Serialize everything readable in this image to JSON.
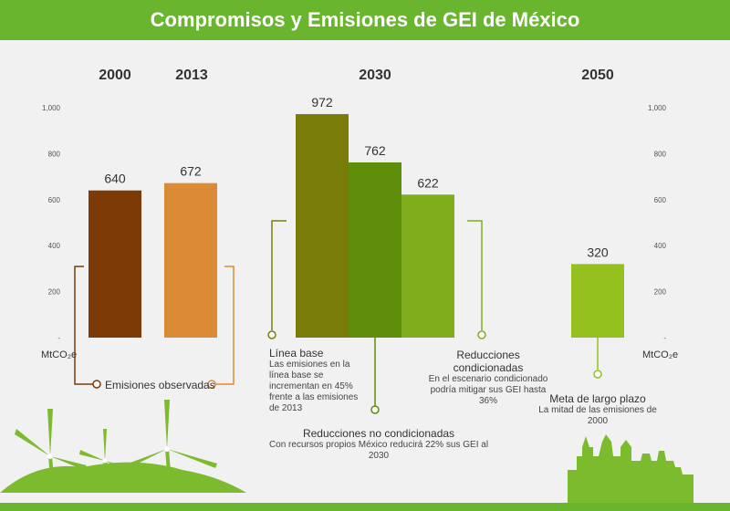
{
  "title": "Compromisos y Emisiones de GEI de México",
  "unit_label": "MtCO₂e",
  "colors": {
    "header": "#69b52e",
    "y2000": "#7b3a06",
    "y2013": "#db8a35",
    "base": "#7a7c0a",
    "noncond": "#5e8e0a",
    "cond": "#7fad1c",
    "goal": "#94c11d"
  },
  "chart_data": {
    "type": "bar",
    "ylim": [
      0,
      1000
    ],
    "yticks": [
      "-",
      "200",
      "400",
      "600",
      "800",
      "1,000"
    ],
    "groups": [
      "2000",
      "2013",
      "2030",
      "2050"
    ],
    "bars": [
      {
        "group": "2000",
        "value": 640,
        "label": "640",
        "color": "#7b3a06"
      },
      {
        "group": "2013",
        "value": 672,
        "label": "672",
        "color": "#db8a35"
      },
      {
        "group": "2030",
        "value": 972,
        "label": "972",
        "color": "#7a7c0a"
      },
      {
        "group": "2030",
        "value": 762,
        "label": "762",
        "color": "#5e8e0a"
      },
      {
        "group": "2030",
        "value": 622,
        "label": "622",
        "color": "#7fad1c"
      },
      {
        "group": "2050",
        "value": 320,
        "label": "320",
        "color": "#94c11d"
      }
    ]
  },
  "annotations": {
    "observed": "Emisiones observadas",
    "baseline_title": "Línea base",
    "baseline_text": "Las emisiones en la línea base se incrementan en 45% frente a las emisiones de 2013",
    "noncond_title": "Reducciones no condicionadas",
    "noncond_text": "Con recursos propios México reducirá 22% sus GEI al 2030",
    "cond_title": "Reducciones condicionadas",
    "cond_text": "En el escenario condicionado podría mitigar sus GEI hasta 36%",
    "goal_title": "Meta de largo plazo",
    "goal_text": "La mitad de las emisiones de 2000"
  }
}
